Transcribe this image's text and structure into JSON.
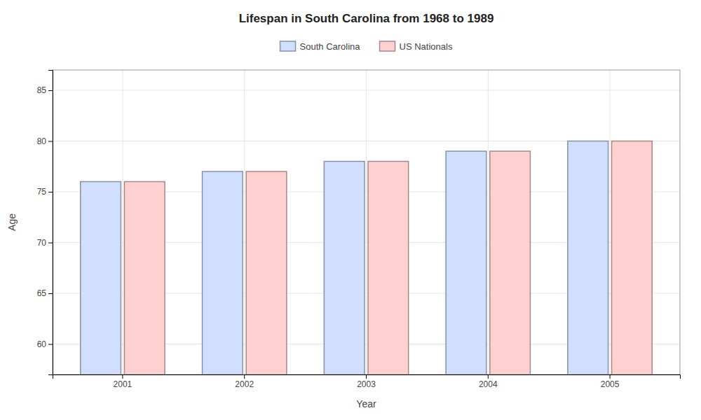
{
  "chart_data": {
    "type": "bar",
    "title": "Lifespan in South Carolina from 1968 to 1989",
    "xlabel": "Year",
    "ylabel": "Age",
    "categories": [
      "2001",
      "2002",
      "2003",
      "2004",
      "2005"
    ],
    "series": [
      {
        "name": "South Carolina",
        "color": "#d0deff",
        "values": [
          76,
          77,
          78,
          79,
          80
        ]
      },
      {
        "name": "US Nationals",
        "color": "#ffd0d0",
        "values": [
          76,
          77,
          78,
          79,
          80
        ]
      }
    ],
    "ylim": [
      57,
      87
    ],
    "yticks": [
      60,
      65,
      70,
      75,
      80,
      85
    ],
    "grid": true,
    "legend": "top"
  }
}
